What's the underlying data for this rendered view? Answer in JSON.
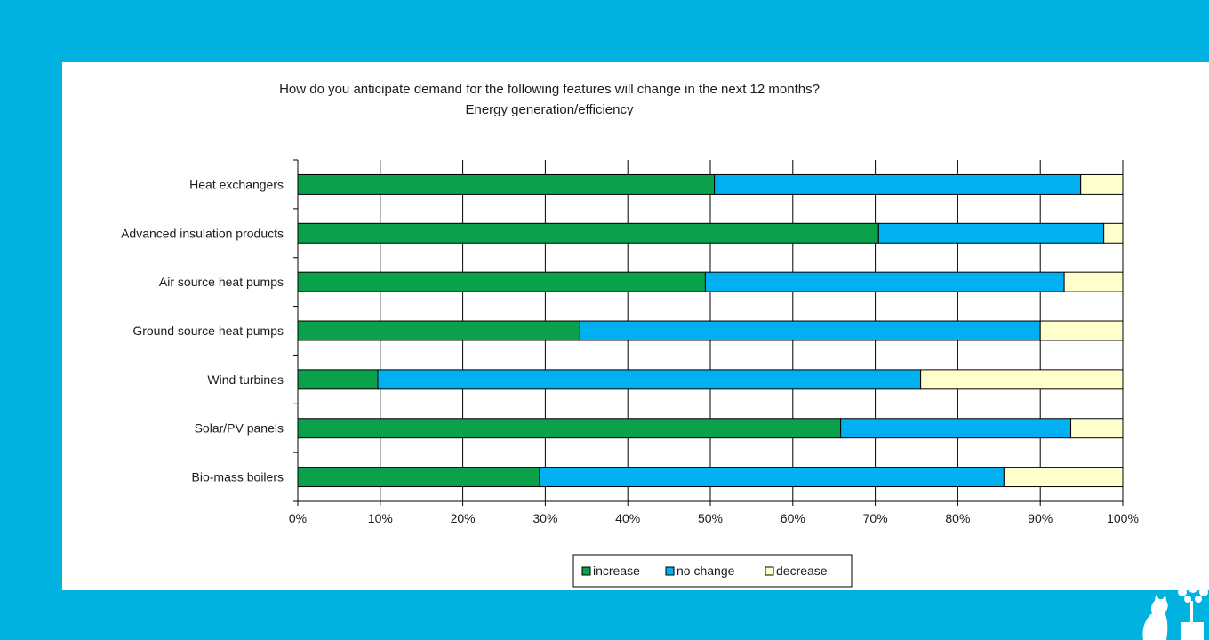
{
  "chart_data": {
    "type": "bar",
    "orientation": "horizontal",
    "stacked": "percent",
    "title": "How do you anticipate demand for the following features will change in the next 12 months?",
    "subtitle": "Energy generation/efficiency",
    "categories": [
      "Heat exchangers",
      "Advanced insulation products",
      "Air source heat pumps",
      "Ground source heat pumps",
      "Wind turbines",
      "Solar/PV panels",
      "Bio-mass boilers"
    ],
    "series": [
      {
        "name": "increase",
        "color": "#0aa14b",
        "values": [
          50.5,
          70.4,
          49.4,
          34.2,
          9.7,
          65.8,
          29.3
        ]
      },
      {
        "name": "no change",
        "color": "#00b0f0",
        "values": [
          44.4,
          27.3,
          43.5,
          55.8,
          65.8,
          27.9,
          56.3
        ]
      },
      {
        "name": "decrease",
        "color": "#ffffcc",
        "values": [
          5.1,
          2.3,
          7.1,
          10.0,
          24.5,
          6.3,
          14.4
        ]
      }
    ],
    "xlim": [
      0,
      100
    ],
    "x_ticks": [
      "0%",
      "10%",
      "20%",
      "30%",
      "40%",
      "50%",
      "60%",
      "70%",
      "80%",
      "90%",
      "100%"
    ],
    "grid": true,
    "legend_position": "bottom"
  },
  "logo": {
    "name": "cat-and-tree-logo"
  }
}
